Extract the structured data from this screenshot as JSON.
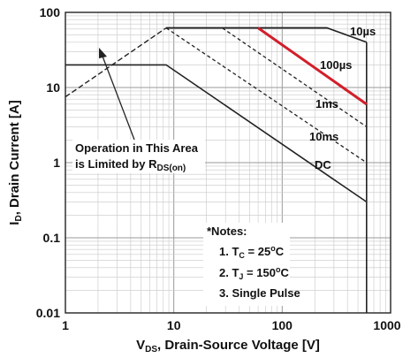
{
  "chart_data": {
    "type": "line",
    "x_scale": "log",
    "y_scale": "log",
    "xlim": [
      1,
      1000
    ],
    "ylim": [
      0.01,
      100
    ],
    "grid": true,
    "xlabel": {
      "main": "V",
      "sub": "DS",
      "rest": ", Drain-Source Voltage [V]"
    },
    "ylabel": {
      "main": "I",
      "sub": "D",
      "rest": ", Drain Current [A]"
    },
    "x_tick_labels": [
      "1",
      "10",
      "100",
      "1000"
    ],
    "y_tick_labels": [
      "0.01",
      "0.1",
      "1",
      "10",
      "100"
    ],
    "limit_lines": {
      "rds_on": [
        [
          1,
          7.5
        ],
        [
          8.5,
          62
        ]
      ],
      "current_limit": [
        [
          8.5,
          62
        ],
        [
          260,
          62
        ]
      ],
      "voltage_limit": [
        [
          600,
          40
        ],
        [
          600,
          0.01
        ]
      ]
    },
    "series": [
      {
        "name": "10µs",
        "style": "solid",
        "points": [
          [
            8.5,
            62
          ],
          [
            260,
            62
          ],
          [
            600,
            40
          ]
        ]
      },
      {
        "name": "100µs",
        "style": "solid-red",
        "points": [
          [
            60,
            62
          ],
          [
            600,
            6
          ]
        ]
      },
      {
        "name": "1ms",
        "style": "dashed",
        "points": [
          [
            28,
            62
          ],
          [
            600,
            3
          ]
        ]
      },
      {
        "name": "10ms",
        "style": "dashed",
        "points": [
          [
            8.5,
            62
          ],
          [
            600,
            1
          ]
        ]
      },
      {
        "name": "DC",
        "style": "solid",
        "points": [
          [
            1,
            20
          ],
          [
            8.5,
            20
          ],
          [
            600,
            0.3
          ]
        ]
      }
    ],
    "annotations": {
      "operation_line1": "Operation in This Area",
      "operation_line2": "is Limited by R",
      "operation_sub": "DS(on)",
      "labels": {
        "l10us": "10µs",
        "l100us": "100µs",
        "l1ms": "1ms",
        "l10ms": "10ms",
        "ldc": "DC"
      }
    },
    "notes": {
      "title": "*Notes:",
      "n1_prefix": "1. T",
      "n1_sub": "C",
      "n1_value": " = 25",
      "n1_unit_sup": "o",
      "n1_unit": "C",
      "n2_prefix": "2. T",
      "n2_sub": "J",
      "n2_value": " = 150",
      "n2_unit_sup": "o",
      "n2_unit": "C",
      "n3": "3. Single Pulse"
    },
    "colors": {
      "grid_major": "#9a9a9a",
      "grid_minor": "#c8c8c8",
      "line": "#222222",
      "red_series": "#d21f2b"
    }
  }
}
